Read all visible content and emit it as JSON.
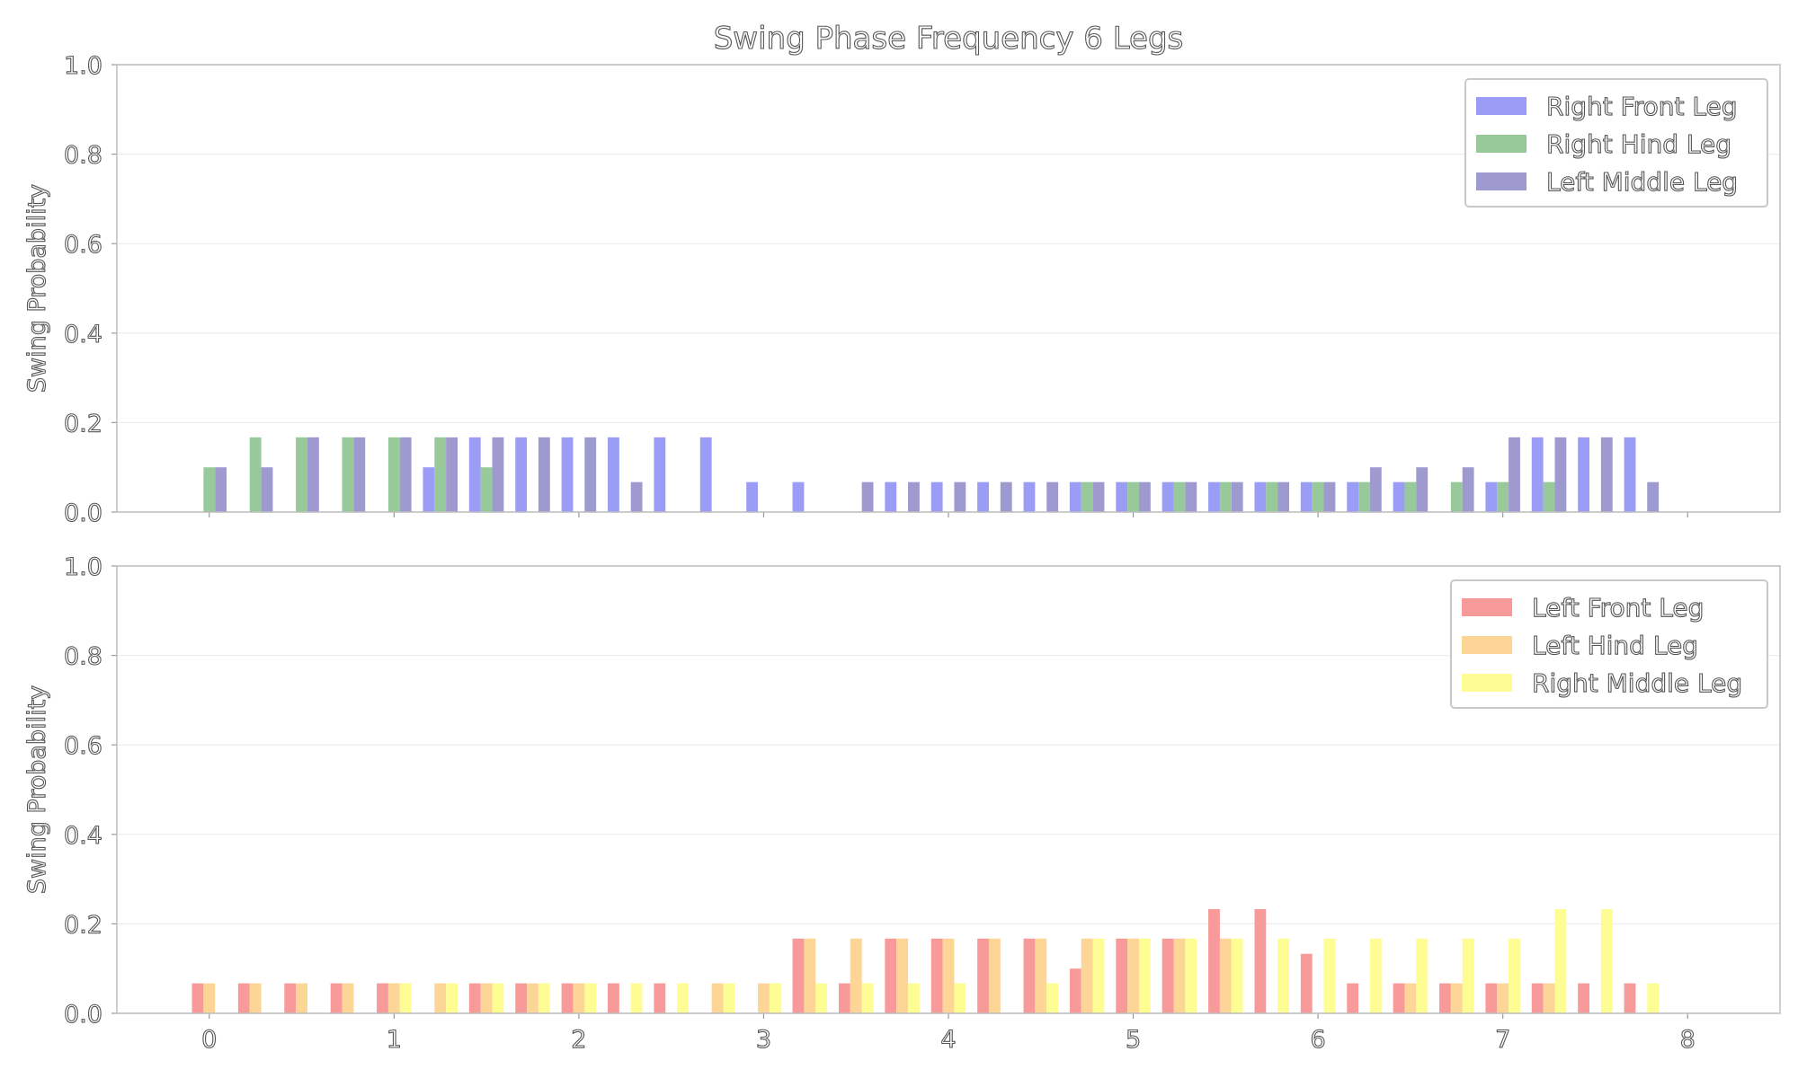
{
  "chart_data": {
    "title": "Swing Phase Frequency 6 Legs",
    "type": "bar",
    "subplots": [
      {
        "ylabel": "Swing Probability",
        "xlim": [
          -0.5,
          8.5
        ],
        "ylim": [
          0.0,
          1.0
        ],
        "yticks": [
          "0.0",
          "0.2",
          "0.4",
          "0.6",
          "0.8",
          "1.0"
        ],
        "xticks": [
          "0",
          "1",
          "2",
          "3",
          "4",
          "5",
          "6",
          "7",
          "8"
        ],
        "legend_position": "top-right",
        "x": [
          0.0,
          0.25,
          0.5,
          0.75,
          1.0,
          1.25,
          1.5,
          1.75,
          2.0,
          2.25,
          2.5,
          2.75,
          3.0,
          3.25,
          3.5,
          3.75,
          4.0,
          4.25,
          4.5,
          4.75,
          5.0,
          5.25,
          5.5,
          5.75,
          6.0,
          6.25,
          6.5,
          6.75,
          7.0,
          7.25,
          7.5,
          7.75
        ],
        "series": [
          {
            "name": "Right Front Leg",
            "color": "#9a9cf5",
            "values": [
              0,
              0,
              0,
              0,
              0,
              0.1,
              0.167,
              0.167,
              0.167,
              0.167,
              0.167,
              0.167,
              0.067,
              0.067,
              0,
              0.067,
              0.067,
              0.067,
              0.067,
              0.067,
              0.067,
              0.067,
              0.067,
              0.067,
              0.067,
              0.067,
              0.067,
              0,
              0.067,
              0.167,
              0.167,
              0.167
            ]
          },
          {
            "name": "Right Hind Leg",
            "color": "#97c99a",
            "values": [
              0.1,
              0.167,
              0.167,
              0.167,
              0.167,
              0.167,
              0.1,
              0,
              0,
              0,
              0,
              0,
              0,
              0,
              0,
              0,
              0,
              0,
              0,
              0.067,
              0.067,
              0.067,
              0.067,
              0.067,
              0.067,
              0.067,
              0.067,
              0.067,
              0.067,
              0.067,
              0,
              0
            ]
          },
          {
            "name": "Left Middle Leg",
            "color": "#9e9ad0",
            "values": [
              0.1,
              0.1,
              0.167,
              0.167,
              0.167,
              0.167,
              0.167,
              0.167,
              0.167,
              0.067,
              0,
              0,
              0,
              0,
              0.067,
              0.067,
              0.067,
              0.067,
              0.067,
              0.067,
              0.067,
              0.067,
              0.067,
              0.067,
              0.067,
              0.1,
              0.1,
              0.1,
              0.167,
              0.167,
              0.167,
              0.067
            ]
          }
        ]
      },
      {
        "ylabel": "Swing Probability",
        "xlim": [
          -0.5,
          8.5
        ],
        "ylim": [
          0.0,
          1.0
        ],
        "yticks": [
          "0.0",
          "0.2",
          "0.4",
          "0.6",
          "0.8",
          "1.0"
        ],
        "xticks": [
          "0",
          "1",
          "2",
          "3",
          "4",
          "5",
          "6",
          "7",
          "8"
        ],
        "legend_position": "top-right",
        "x": [
          0.0,
          0.25,
          0.5,
          0.75,
          1.0,
          1.25,
          1.5,
          1.75,
          2.0,
          2.25,
          2.5,
          2.75,
          3.0,
          3.25,
          3.5,
          3.75,
          4.0,
          4.25,
          4.5,
          4.75,
          5.0,
          5.25,
          5.5,
          5.75,
          6.0,
          6.25,
          6.5,
          6.75,
          7.0,
          7.25,
          7.5,
          7.75
        ],
        "series": [
          {
            "name": "Left Front Leg",
            "color": "#f99a9a",
            "values": [
              0.067,
              0.067,
              0.067,
              0.067,
              0.067,
              0,
              0.067,
              0.067,
              0.067,
              0.067,
              0.067,
              0,
              0,
              0.167,
              0.067,
              0.167,
              0.167,
              0.167,
              0.167,
              0.1,
              0.167,
              0.167,
              0.233,
              0.233,
              0.133,
              0.067,
              0.067,
              0.067,
              0.067,
              0.067,
              0.067,
              0.067
            ]
          },
          {
            "name": "Left Hind Leg",
            "color": "#fdd597",
            "values": [
              0.067,
              0.067,
              0.067,
              0.067,
              0.067,
              0.067,
              0.067,
              0.067,
              0.067,
              0,
              0,
              0.067,
              0.067,
              0.167,
              0.167,
              0.167,
              0.167,
              0.167,
              0.167,
              0.167,
              0.167,
              0.167,
              0.167,
              0,
              0,
              0,
              0.067,
              0.067,
              0.067,
              0.067,
              0,
              0
            ]
          },
          {
            "name": "Right Middle Leg",
            "color": "#fdfd94",
            "values": [
              0,
              0,
              0,
              0,
              0.067,
              0.067,
              0.067,
              0.067,
              0.067,
              0.067,
              0.067,
              0.067,
              0.067,
              0.067,
              0.067,
              0.067,
              0.067,
              0,
              0.067,
              0.167,
              0.167,
              0.167,
              0.167,
              0.167,
              0.167,
              0.167,
              0.167,
              0.167,
              0.167,
              0.233,
              0.233,
              0.067
            ]
          }
        ]
      }
    ]
  }
}
